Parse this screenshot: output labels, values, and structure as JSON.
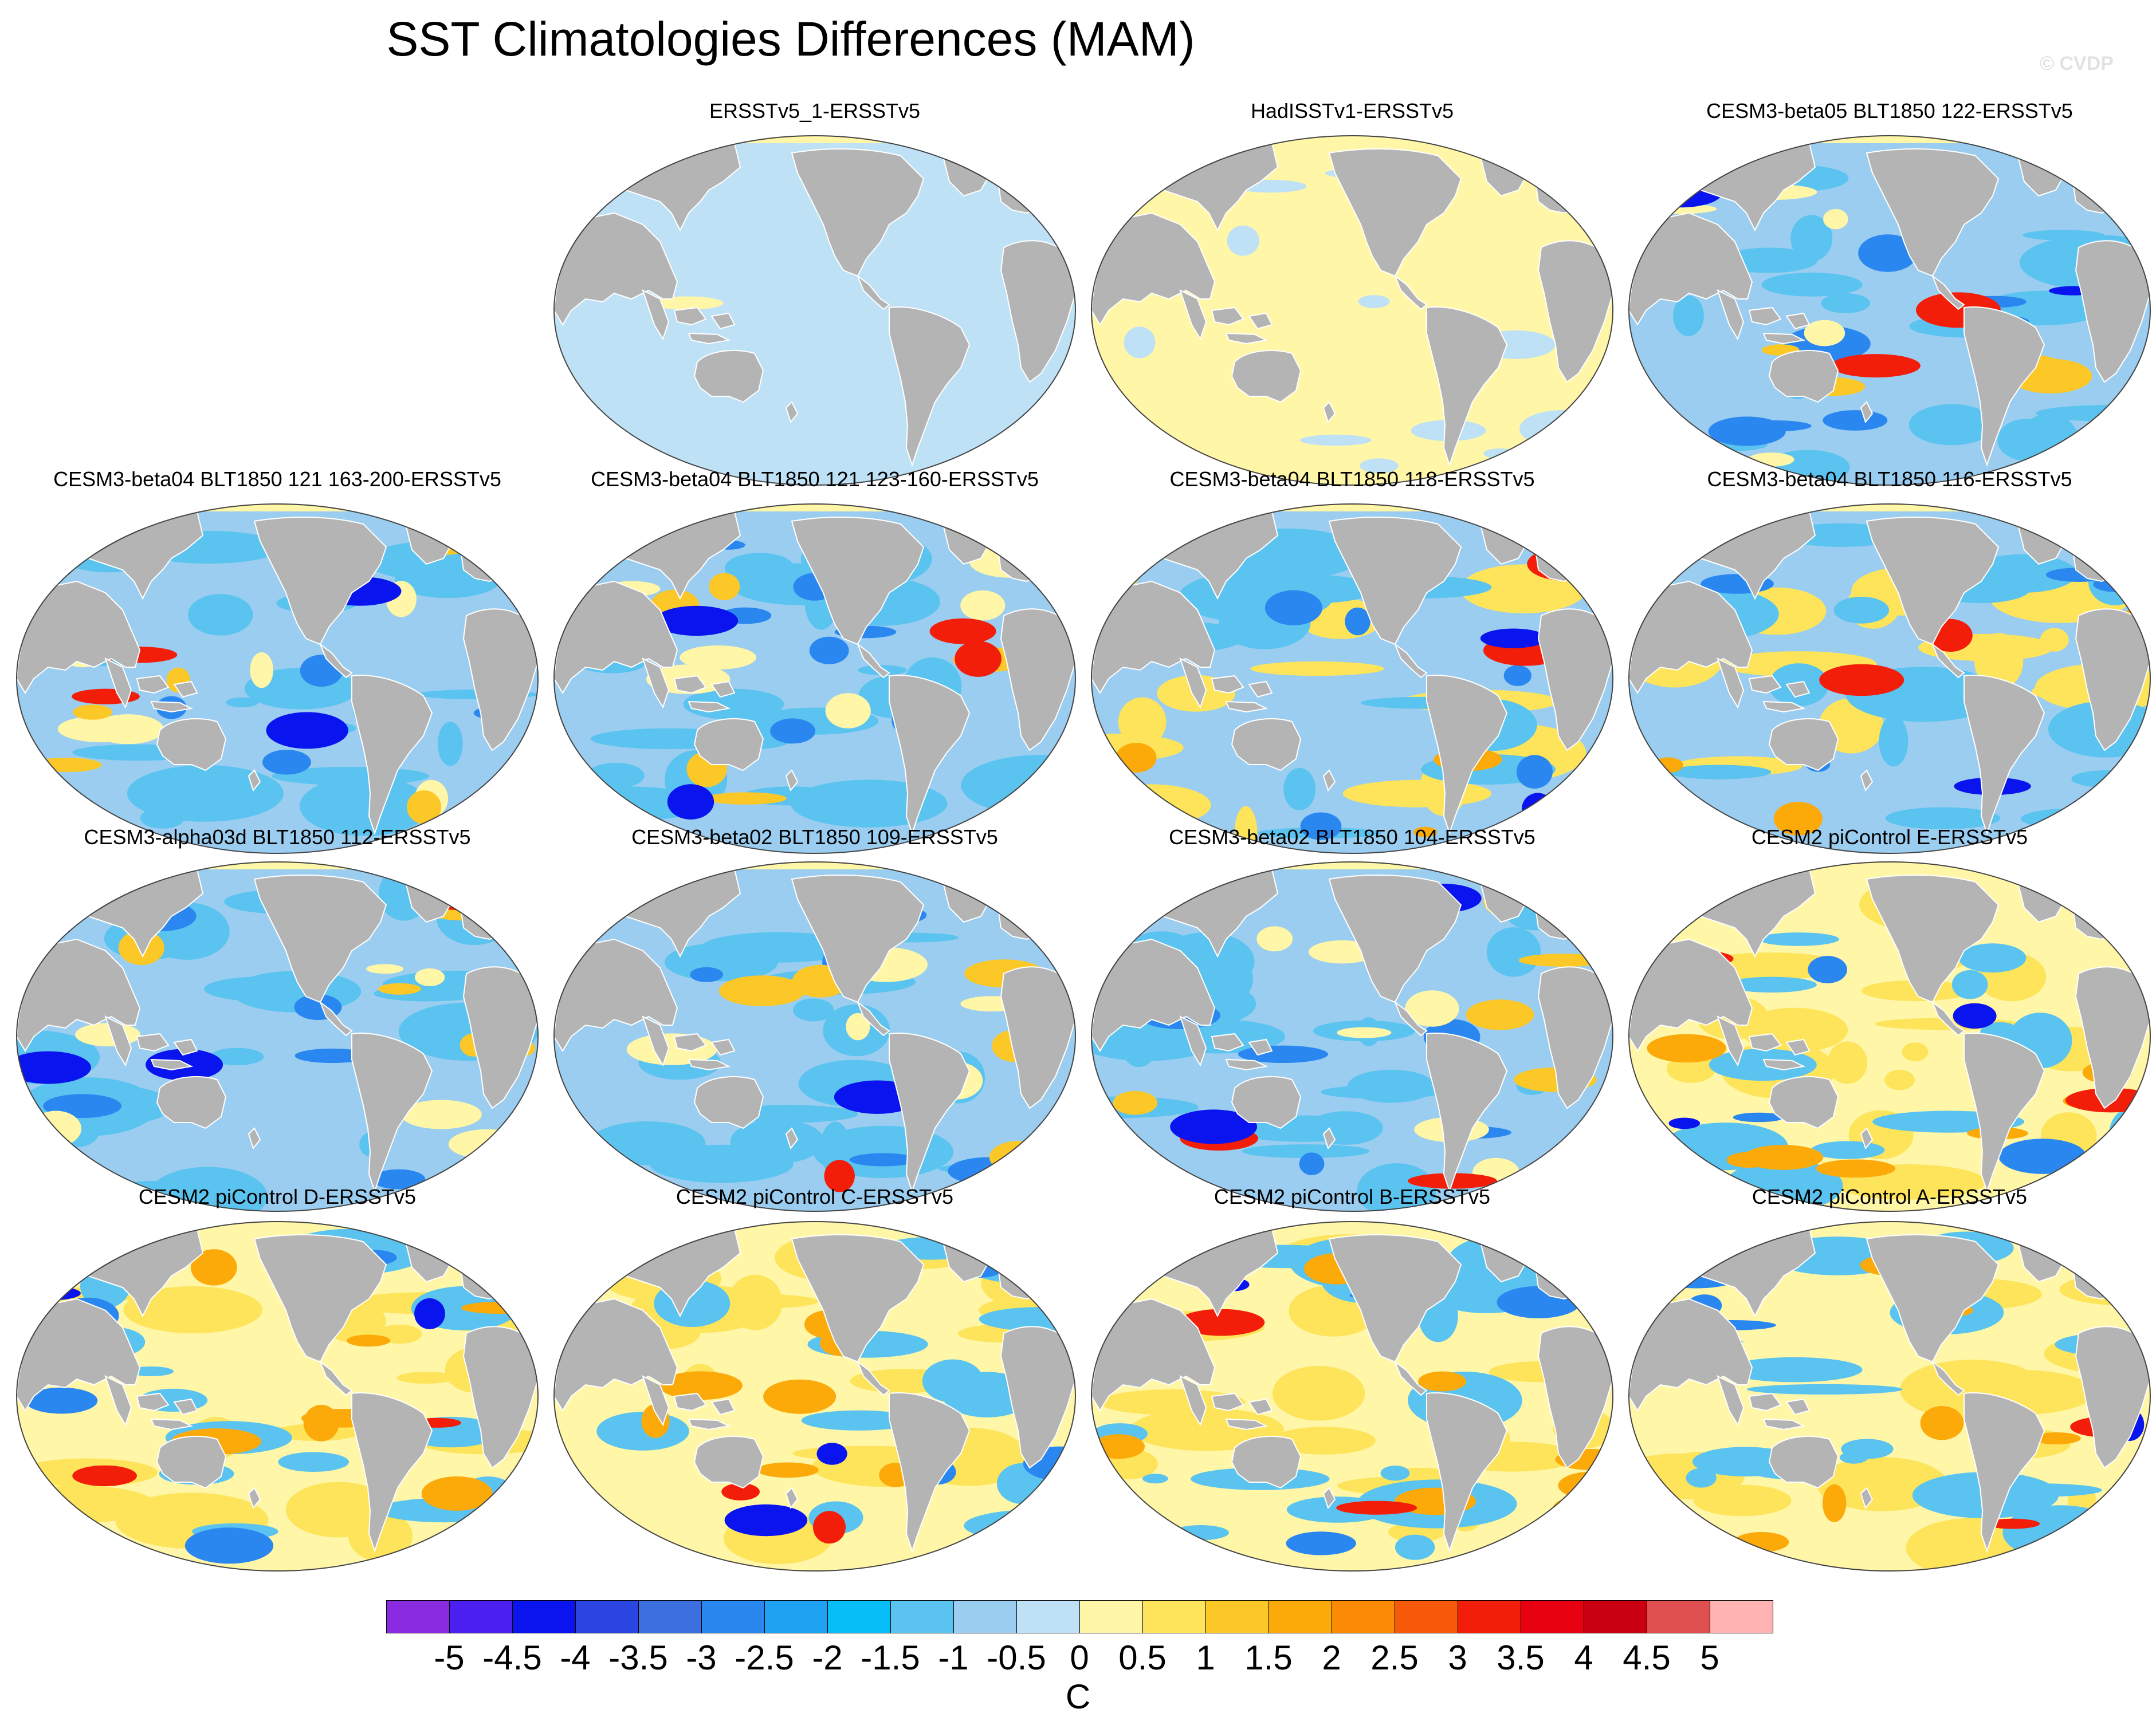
{
  "title": "SST Climatologies Differences (MAM)",
  "watermark": "© CVDP",
  "units": "C",
  "colors": {
    "land": "#b4b4b4",
    "coast": "#ffffff",
    "ocean_outline": "#444444"
  },
  "colorbar": {
    "labels": [
      "-5",
      "-4.5",
      "-4",
      "-3.5",
      "-3",
      "-2.5",
      "-2",
      "-1.5",
      "-1",
      "-0.5",
      "0",
      "0.5",
      "1",
      "1.5",
      "2",
      "2.5",
      "3",
      "3.5",
      "4",
      "4.5",
      "5"
    ],
    "colors": [
      "#8a2be2",
      "#4b1ff0",
      "#0a14ee",
      "#2b46e0",
      "#3c6fe0",
      "#2a87f0",
      "#1fa2f2",
      "#07bff6",
      "#5ac3ef",
      "#9acdf0",
      "#bfe1f5",
      "#fff6a8",
      "#fde45a",
      "#fbc827",
      "#fbaa0a",
      "#fb8a05",
      "#f7590a",
      "#f21e0a",
      "#e60010",
      "#c80010",
      "#e05050",
      "#ffb4b4"
    ]
  },
  "panels": [
    {
      "title": "ERSSTv5_1-ERSSTv5",
      "pattern": "flat-cool"
    },
    {
      "title": "HadISSTv1-ERSSTv5",
      "pattern": "flat-warm"
    },
    {
      "title": "CESM3-beta05 BLT1850 122-ERSSTv5",
      "pattern": "cool"
    },
    {
      "title": "CESM3-beta04 BLT1850 121 163-200-ERSSTv5",
      "pattern": "cool"
    },
    {
      "title": "CESM3-beta04 BLT1850 121 123-160-ERSSTv5",
      "pattern": "cool"
    },
    {
      "title": "CESM3-beta04 BLT1850 118-ERSSTv5",
      "pattern": "mixed"
    },
    {
      "title": "CESM3-beta04 BLT1850 116-ERSSTv5",
      "pattern": "mixed"
    },
    {
      "title": "CESM3-alpha03d BLT1850 112-ERSSTv5",
      "pattern": "cool"
    },
    {
      "title": "CESM3-beta02 BLT1850 109-ERSSTv5",
      "pattern": "cool"
    },
    {
      "title": "CESM3-beta02 BLT1850 104-ERSSTv5",
      "pattern": "cool"
    },
    {
      "title": "CESM2 piControl E-ERSSTv5",
      "pattern": "warm"
    },
    {
      "title": "CESM2 piControl D-ERSSTv5",
      "pattern": "warm"
    },
    {
      "title": "CESM2 piControl C-ERSSTv5",
      "pattern": "warm"
    },
    {
      "title": "CESM2 piControl B-ERSSTv5",
      "pattern": "warm"
    },
    {
      "title": "CESM2 piControl A-ERSSTv5",
      "pattern": "warm"
    }
  ]
}
